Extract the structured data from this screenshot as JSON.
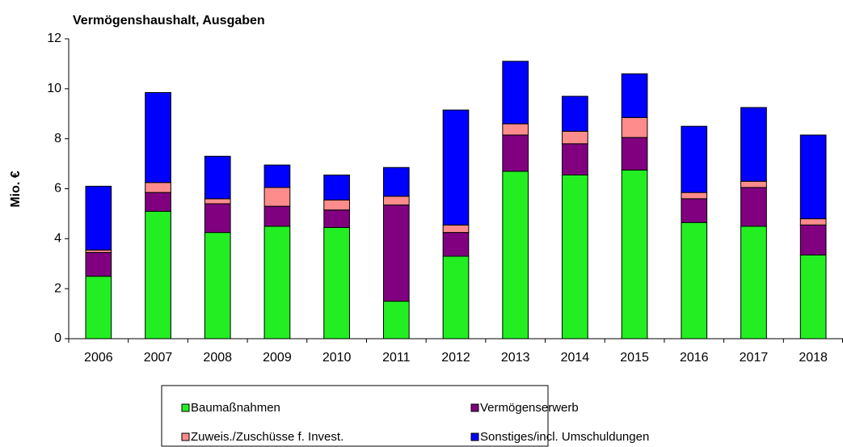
{
  "chart_data": {
    "type": "stacked_bar",
    "title": "Vermögenshaushalt, Ausgaben",
    "y_label": "Mio. €",
    "categories": [
      "2006",
      "2007",
      "2008",
      "2009",
      "2010",
      "2011",
      "2012",
      "2013",
      "2014",
      "2015",
      "2016",
      "2017",
      "2018"
    ],
    "series": [
      {
        "name": "Baumaßnahmen",
        "color": "#22ee22",
        "values": [
          2.5,
          5.1,
          4.25,
          4.5,
          4.45,
          1.5,
          3.3,
          6.7,
          6.55,
          6.75,
          4.65,
          4.5,
          3.35
        ]
      },
      {
        "name": "Vermögenserwerb",
        "color": "#800080",
        "values": [
          0.95,
          0.75,
          1.15,
          0.8,
          0.7,
          3.85,
          0.95,
          1.45,
          1.25,
          1.3,
          0.95,
          1.55,
          1.2
        ]
      },
      {
        "name": "Zuweis./Zuschüsse f. Invest.",
        "color": "#ff8c8c",
        "values": [
          0.1,
          0.4,
          0.2,
          0.75,
          0.4,
          0.35,
          0.3,
          0.45,
          0.5,
          0.8,
          0.25,
          0.25,
          0.25
        ]
      },
      {
        "name": "Sonstiges/incl. Umschuldungen",
        "color": "#0000ff",
        "values": [
          2.55,
          3.6,
          1.7,
          0.9,
          1.0,
          1.15,
          4.6,
          2.5,
          1.4,
          1.75,
          2.65,
          2.95,
          3.35
        ]
      }
    ],
    "ylim": [
      0,
      12
    ],
    "yticks": [
      0,
      2,
      4,
      6,
      8,
      10,
      12
    ],
    "grid": false
  }
}
